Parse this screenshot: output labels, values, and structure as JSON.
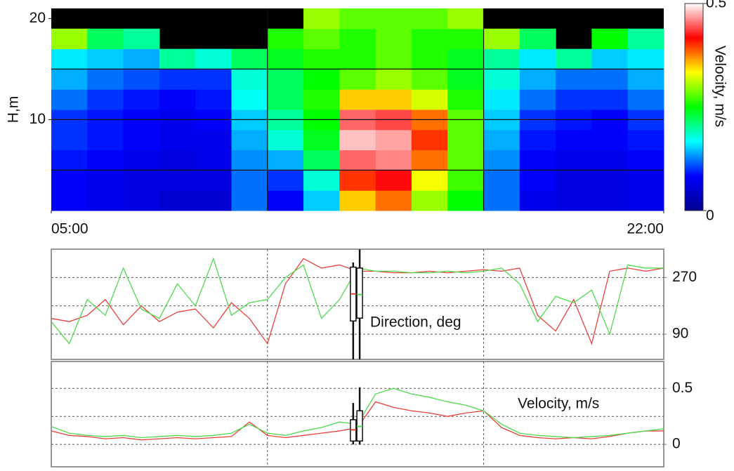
{
  "chart_data": [
    {
      "type": "heatmap",
      "ylabel": "H,m",
      "xlim": [
        5,
        22
      ],
      "xticks": [
        {
          "value": 5,
          "label": "05:00"
        },
        {
          "value": 22,
          "label": "22:00"
        }
      ],
      "ylim": [
        1,
        21
      ],
      "yticks": [
        10,
        20
      ],
      "ygrid": [
        5,
        10,
        15
      ],
      "xgrid": [
        11,
        17
      ],
      "time_bins": [
        5,
        6,
        7,
        8,
        9,
        10,
        11,
        12,
        13,
        14,
        15,
        16,
        17,
        18,
        19,
        20,
        21,
        22
      ],
      "height_bins": [
        1,
        3,
        5,
        7,
        9,
        11,
        13,
        15,
        17,
        19,
        21
      ],
      "values": [
        [
          0.08,
          0.07,
          0.06,
          0.05,
          0.05,
          0.12,
          0.08,
          0.15,
          0.35,
          0.38,
          0.3,
          0.25,
          0.12,
          0.07,
          0.06,
          0.06,
          0.07
        ],
        [
          0.08,
          0.07,
          0.06,
          0.06,
          0.06,
          0.12,
          0.1,
          0.18,
          0.4,
          0.42,
          0.33,
          0.27,
          0.12,
          0.08,
          0.06,
          0.06,
          0.07
        ],
        [
          0.09,
          0.08,
          0.07,
          0.06,
          0.07,
          0.13,
          0.14,
          0.22,
          0.45,
          0.46,
          0.38,
          0.28,
          0.13,
          0.08,
          0.07,
          0.07,
          0.08
        ],
        [
          0.1,
          0.09,
          0.08,
          0.07,
          0.07,
          0.14,
          0.18,
          0.24,
          0.48,
          0.47,
          0.4,
          0.28,
          0.14,
          0.09,
          0.08,
          0.08,
          0.09
        ],
        [
          0.1,
          0.09,
          0.08,
          0.07,
          0.08,
          0.15,
          0.2,
          0.25,
          0.45,
          0.44,
          0.38,
          0.28,
          0.15,
          0.1,
          0.09,
          0.08,
          0.1
        ],
        [
          0.12,
          0.1,
          0.09,
          0.08,
          0.09,
          0.17,
          0.22,
          0.26,
          0.35,
          0.35,
          0.32,
          0.26,
          0.16,
          0.12,
          0.1,
          0.1,
          0.12
        ],
        [
          0.14,
          0.12,
          0.11,
          0.1,
          0.1,
          0.18,
          0.22,
          0.25,
          0.28,
          0.3,
          0.28,
          0.24,
          0.18,
          0.14,
          0.12,
          0.12,
          0.14
        ],
        [
          0.16,
          0.15,
          0.14,
          0.2,
          0.18,
          0.22,
          0.24,
          0.26,
          0.26,
          0.28,
          0.26,
          0.24,
          0.2,
          0.16,
          0.2,
          0.15,
          0.16
        ],
        [
          0.3,
          0.22,
          0.2,
          null,
          null,
          null,
          0.26,
          0.28,
          0.26,
          0.28,
          0.26,
          0.26,
          0.3,
          0.22,
          null,
          0.25,
          0.2
        ],
        [
          null,
          null,
          null,
          null,
          null,
          null,
          null,
          0.3,
          0.28,
          0.28,
          0.28,
          0.3,
          null,
          null,
          null,
          null,
          null
        ]
      ],
      "colormap": [
        "#00008f",
        "#0000ff",
        "#00ffff",
        "#00ff00",
        "#ffff00",
        "#ff0000",
        "#ffffff"
      ],
      "null_color": "#000000",
      "colorbar": {
        "label": "Velocity, m/s",
        "clim": [
          0,
          0.5
        ],
        "ticks": [
          0,
          0.5
        ]
      }
    },
    {
      "type": "line",
      "annotation": "Direction, deg",
      "xlim": [
        5,
        22
      ],
      "xgrid": [
        11,
        17
      ],
      "ylim": [
        10,
        360
      ],
      "yticks": [
        90,
        270
      ],
      "ygrid": [
        90,
        180,
        270
      ],
      "x": [
        5,
        5.5,
        6,
        6.5,
        7,
        7.5,
        8,
        8.5,
        9,
        9.5,
        10,
        10.5,
        11,
        11.5,
        12,
        12.5,
        13,
        13.5,
        14,
        14.5,
        15,
        15.5,
        16,
        16.5,
        17,
        17.5,
        18,
        18.5,
        19,
        19.5,
        20,
        20.5,
        21,
        21.5,
        22
      ],
      "series": [
        {
          "color": "#e8413c",
          "values": [
            140,
            130,
            150,
            200,
            120,
            180,
            130,
            160,
            170,
            110,
            190,
            140,
            60,
            250,
            330,
            300,
            310,
            290,
            290,
            285,
            285,
            290,
            285,
            290,
            295,
            290,
            300,
            150,
            100,
            200,
            60,
            290,
            300,
            290,
            300
          ]
        },
        {
          "color": "#4fd94f",
          "values": [
            130,
            60,
            200,
            150,
            300,
            170,
            140,
            250,
            180,
            330,
            150,
            190,
            200,
            270,
            310,
            140,
            200,
            300,
            290,
            290,
            285,
            285,
            290,
            285,
            290,
            300,
            250,
            130,
            210,
            190,
            230,
            90,
            310,
            300,
            300
          ]
        }
      ],
      "boxes": [
        {
          "x": 13.38,
          "min": 10,
          "q1": 132,
          "median": 218,
          "q3": 303,
          "max": 318,
          "median_color": "#e8413c"
        },
        {
          "x": 13.56,
          "min": 10,
          "q1": 141,
          "median": 216,
          "q3": 300,
          "max": 359,
          "median_color": "#4fd94f"
        }
      ]
    },
    {
      "type": "line",
      "annotation": "Velocity, m/s",
      "xlim": [
        5,
        22
      ],
      "xgrid": [
        11,
        17
      ],
      "ylim": [
        -0.2,
        0.74
      ],
      "yticks": [
        0,
        0.5
      ],
      "ygrid": [
        0,
        0.25,
        0.5
      ],
      "x": [
        5,
        5.5,
        6,
        6.5,
        7,
        7.5,
        8,
        8.5,
        9,
        9.5,
        10,
        10.5,
        11,
        11.5,
        12,
        12.5,
        13,
        13.5,
        14,
        14.5,
        15,
        15.5,
        16,
        16.5,
        17,
        17.5,
        18,
        18.5,
        19,
        19.5,
        20,
        20.5,
        21,
        21.5,
        22
      ],
      "series": [
        {
          "color": "#e8413c",
          "values": [
            0.12,
            0.08,
            0.07,
            0.05,
            0.06,
            0.04,
            0.05,
            0.06,
            0.05,
            0.06,
            0.07,
            0.2,
            0.08,
            0.06,
            0.08,
            0.1,
            0.12,
            0.15,
            0.38,
            0.33,
            0.3,
            0.28,
            0.25,
            0.28,
            0.3,
            0.15,
            0.08,
            0.06,
            0.05,
            0.06,
            0.05,
            0.07,
            0.1,
            0.12,
            0.12
          ]
        },
        {
          "color": "#4fd94f",
          "values": [
            0.16,
            0.1,
            0.08,
            0.07,
            0.08,
            0.06,
            0.07,
            0.08,
            0.07,
            0.08,
            0.1,
            0.18,
            0.1,
            0.08,
            0.12,
            0.15,
            0.2,
            0.18,
            0.45,
            0.5,
            0.45,
            0.42,
            0.38,
            0.35,
            0.3,
            0.18,
            0.1,
            0.08,
            0.07,
            0.06,
            0.07,
            0.08,
            0.1,
            0.12,
            0.14
          ]
        }
      ],
      "boxes": [
        {
          "x": 13.38,
          "min": 0,
          "q1": 0.03,
          "median": 0.13,
          "q3": 0.22,
          "max": 0.37,
          "median_color": "#e8413c"
        },
        {
          "x": 13.56,
          "min": 0,
          "q1": 0.03,
          "median": 0.16,
          "q3": 0.3,
          "max": 0.51,
          "median_color": "#4fd94f"
        }
      ]
    }
  ]
}
